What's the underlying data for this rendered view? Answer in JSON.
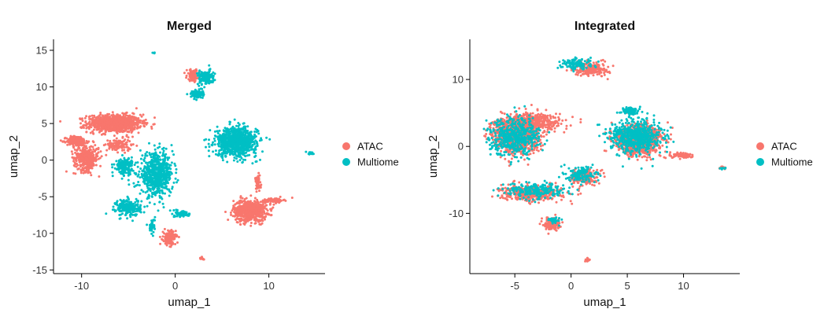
{
  "chart_data": [
    {
      "type": "scatter",
      "title": "Merged",
      "xlabel": "umap_1",
      "ylabel": "umap_2",
      "xlim": [
        -13,
        16
      ],
      "ylim": [
        -15.5,
        16.5
      ],
      "x_ticks": [
        -10,
        0,
        10
      ],
      "y_ticks": [
        -15,
        -10,
        -5,
        0,
        5,
        10,
        15
      ],
      "grid": false,
      "legend_position": "right",
      "series": [
        {
          "name": "ATAC",
          "color": "#F8766D",
          "clusters": [
            {
              "x": -6.5,
              "y": 5.0,
              "sx": 2.6,
              "sy": 1.1,
              "n": 900
            },
            {
              "x": -10.5,
              "y": 2.6,
              "sx": 1.0,
              "sy": 0.6,
              "n": 220
            },
            {
              "x": -9.5,
              "y": 0.3,
              "sx": 1.2,
              "sy": 1.6,
              "n": 350
            },
            {
              "x": -6.0,
              "y": 2.0,
              "sx": 1.2,
              "sy": 0.8,
              "n": 120
            },
            {
              "x": 8.0,
              "y": -6.9,
              "sx": 1.6,
              "sy": 1.3,
              "n": 650
            },
            {
              "x": 10.5,
              "y": -5.5,
              "sx": 1.0,
              "sy": 0.3,
              "n": 90
            },
            {
              "x": 8.8,
              "y": -3.3,
              "sx": 0.3,
              "sy": 1.0,
              "n": 70
            },
            {
              "x": -0.6,
              "y": -10.6,
              "sx": 0.6,
              "sy": 0.9,
              "n": 160
            },
            {
              "x": 1.9,
              "y": 11.6,
              "sx": 0.6,
              "sy": 0.7,
              "n": 110
            },
            {
              "x": 2.8,
              "y": -13.5,
              "sx": 0.3,
              "sy": 0.2,
              "n": 12
            }
          ]
        },
        {
          "name": "Multiome",
          "color": "#00BFC4",
          "clusters": [
            {
              "x": -2.0,
              "y": -2.0,
              "sx": 1.6,
              "sy": 2.6,
              "n": 620
            },
            {
              "x": -5.5,
              "y": -0.8,
              "sx": 0.9,
              "sy": 1.0,
              "n": 160
            },
            {
              "x": -5.0,
              "y": -6.5,
              "sx": 1.2,
              "sy": 1.0,
              "n": 240
            },
            {
              "x": 6.5,
              "y": 2.5,
              "sx": 2.0,
              "sy": 1.8,
              "n": 820
            },
            {
              "x": 3.3,
              "y": 11.3,
              "sx": 0.8,
              "sy": 0.9,
              "n": 150
            },
            {
              "x": 2.3,
              "y": 9.0,
              "sx": 0.6,
              "sy": 0.5,
              "n": 90
            },
            {
              "x": 0.8,
              "y": -7.3,
              "sx": 0.7,
              "sy": 0.4,
              "n": 80
            },
            {
              "x": -2.5,
              "y": -9.0,
              "sx": 0.3,
              "sy": 1.0,
              "n": 40
            },
            {
              "x": 14.5,
              "y": 0.9,
              "sx": 0.3,
              "sy": 0.2,
              "n": 14
            },
            {
              "x": -2.3,
              "y": 14.6,
              "sx": 0.1,
              "sy": 0.1,
              "n": 4
            }
          ]
        }
      ]
    },
    {
      "type": "scatter",
      "title": "Integrated",
      "xlabel": "umap_1",
      "ylabel": "umap_2",
      "xlim": [
        -9,
        15
      ],
      "ylim": [
        -19,
        16
      ],
      "x_ticks": [
        -5,
        0,
        5,
        10
      ],
      "y_ticks": [
        -10,
        0,
        10
      ],
      "grid": false,
      "legend_position": "right",
      "series": [
        {
          "name": "ATAC",
          "color": "#F8766D",
          "clusters": [
            {
              "x": -4.8,
              "y": 1.8,
              "sx": 1.8,
              "sy": 2.4,
              "n": 1100
            },
            {
              "x": -3.0,
              "y": 3.7,
              "sx": 2.2,
              "sy": 1.2,
              "n": 300
            },
            {
              "x": -3.5,
              "y": -7.0,
              "sx": 2.4,
              "sy": 1.0,
              "n": 420
            },
            {
              "x": 1.2,
              "y": -4.6,
              "sx": 1.0,
              "sy": 1.0,
              "n": 200
            },
            {
              "x": -1.7,
              "y": -11.6,
              "sx": 0.6,
              "sy": 0.8,
              "n": 140
            },
            {
              "x": 1.8,
              "y": 11.6,
              "sx": 1.4,
              "sy": 0.9,
              "n": 220
            },
            {
              "x": 6.0,
              "y": 1.0,
              "sx": 1.7,
              "sy": 1.9,
              "n": 1100
            },
            {
              "x": 10.0,
              "y": -1.4,
              "sx": 1.0,
              "sy": 0.3,
              "n": 90
            },
            {
              "x": 1.5,
              "y": -17.0,
              "sx": 0.3,
              "sy": 0.3,
              "n": 12
            },
            {
              "x": 13.5,
              "y": -3.2,
              "sx": 0.3,
              "sy": 0.2,
              "n": 12
            }
          ]
        },
        {
          "name": "Multiome",
          "color": "#00BFC4",
          "clusters": [
            {
              "x": -5.0,
              "y": 1.5,
              "sx": 2.0,
              "sy": 2.5,
              "n": 520
            },
            {
              "x": -3.2,
              "y": -6.6,
              "sx": 2.4,
              "sy": 1.0,
              "n": 220
            },
            {
              "x": 1.0,
              "y": -4.2,
              "sx": 1.2,
              "sy": 1.1,
              "n": 140
            },
            {
              "x": 0.5,
              "y": 12.4,
              "sx": 1.2,
              "sy": 0.7,
              "n": 130
            },
            {
              "x": 5.8,
              "y": 1.5,
              "sx": 2.0,
              "sy": 2.2,
              "n": 620
            },
            {
              "x": 5.3,
              "y": 5.3,
              "sx": 0.7,
              "sy": 0.5,
              "n": 90
            },
            {
              "x": -1.5,
              "y": -11.0,
              "sx": 0.5,
              "sy": 0.5,
              "n": 30
            },
            {
              "x": 13.5,
              "y": -3.3,
              "sx": 0.3,
              "sy": 0.2,
              "n": 8
            }
          ]
        }
      ]
    }
  ]
}
